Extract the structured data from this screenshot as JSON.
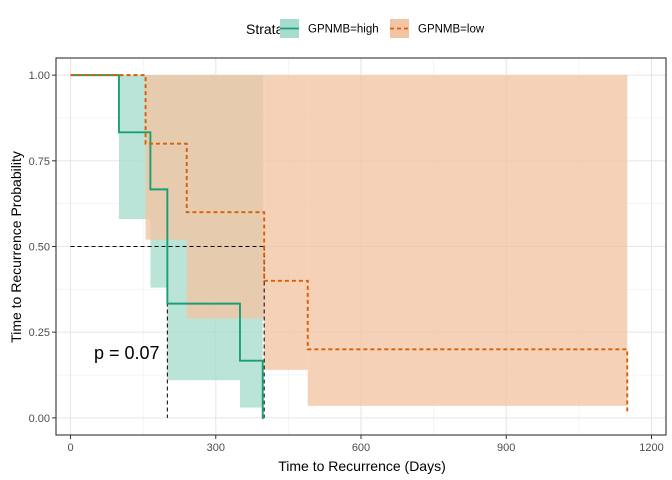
{
  "chart_data": {
    "type": "line",
    "subtype": "kaplan-meier",
    "xlabel": "Time to Recurrence (Days)",
    "ylabel": "Time to Recurrence Probability",
    "xlim": [
      -30,
      1230
    ],
    "ylim": [
      -0.05,
      1.05
    ],
    "xticks": [
      0,
      300,
      600,
      900,
      1200
    ],
    "xtick_labels": [
      "0",
      "300",
      "600",
      "900",
      "1200"
    ],
    "yticks": [
      0,
      0.25,
      0.5,
      0.75,
      1
    ],
    "ytick_labels": [
      "0.00",
      "0.25",
      "0.50",
      "0.75",
      "1.00"
    ],
    "grid": true,
    "legend": {
      "title": "Strata",
      "position": "top",
      "items": [
        "GPNMB=high",
        "GPNMB=low"
      ]
    },
    "annotation": "p = 0.07",
    "median_lines": [
      {
        "x": 200,
        "y": 0.5
      },
      {
        "x": 400,
        "y": 0.5
      }
    ],
    "series": [
      {
        "name": "GPNMB=high",
        "color": "#1b9e77",
        "ci_color": "#a6dccd",
        "dash": "solid",
        "steps": [
          {
            "x": 0,
            "y": 1.0,
            "lower": 1.0,
            "upper": 1.0
          },
          {
            "x": 100,
            "y": 0.8333,
            "lower": 0.58,
            "upper": 1.0
          },
          {
            "x": 165,
            "y": 0.6667,
            "lower": 0.38,
            "upper": 1.0
          },
          {
            "x": 200,
            "y": 0.3333,
            "lower": 0.11,
            "upper": 1.0
          },
          {
            "x": 350,
            "y": 0.1667,
            "lower": 0.03,
            "upper": 1.0
          },
          {
            "x": 397,
            "y": 0.0,
            "lower": 0.0,
            "upper": 0.0
          }
        ],
        "end_x": 400
      },
      {
        "name": "GPNMB=low",
        "color": "#d95f02",
        "ci_color": "#f2c4a3",
        "dash": "dashed",
        "steps": [
          {
            "x": 0,
            "y": 1.0,
            "lower": 1.0,
            "upper": 1.0
          },
          {
            "x": 155,
            "y": 0.8,
            "lower": 0.52,
            "upper": 1.0
          },
          {
            "x": 240,
            "y": 0.6,
            "lower": 0.29,
            "upper": 1.0
          },
          {
            "x": 400,
            "y": 0.4,
            "lower": 0.14,
            "upper": 1.0
          },
          {
            "x": 490,
            "y": 0.2,
            "lower": 0.035,
            "upper": 1.0
          }
        ],
        "end_x": 1150,
        "end_drop_y": 0.01
      }
    ]
  }
}
